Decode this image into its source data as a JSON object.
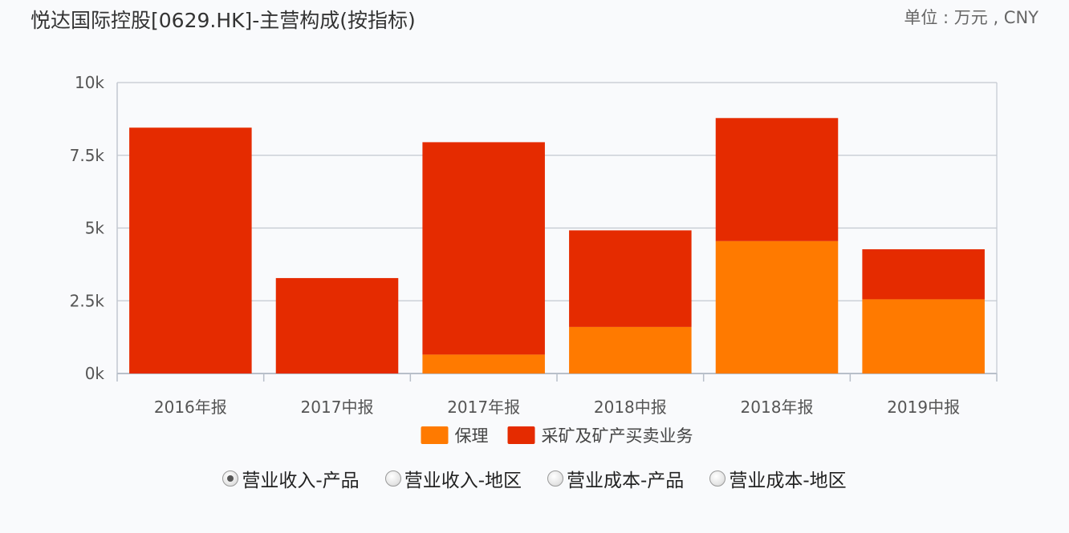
{
  "header": {
    "title": "悦达国际控股[0629.HK]-主营构成(按指标)",
    "unit": "单位 : 万元 , CNY"
  },
  "chart_data": {
    "type": "bar",
    "stacked": true,
    "categories": [
      "2016年报",
      "2017中报",
      "2017年报",
      "2018中报",
      "2018年报",
      "2019中报"
    ],
    "series": [
      {
        "name": "保理",
        "color": "#ff7a00",
        "values": [
          0,
          0,
          650,
          1600,
          4550,
          2550
        ]
      },
      {
        "name": "采矿及矿产买卖业务",
        "color": "#e52b00",
        "values": [
          8450,
          3280,
          7300,
          3320,
          4230,
          1720
        ]
      }
    ],
    "ylim": [
      0,
      10000
    ],
    "yticks": [
      0,
      2500,
      5000,
      7500,
      10000
    ],
    "ytick_labels": [
      "0k",
      "2.5k",
      "5k",
      "7.5k",
      "10k"
    ],
    "grid": true,
    "legend_position": "bottom-center",
    "xlabel": "",
    "ylabel": ""
  },
  "radio_options": [
    {
      "label": "营业收入-产品",
      "checked": true
    },
    {
      "label": "营业收入-地区",
      "checked": false
    },
    {
      "label": "营业成本-产品",
      "checked": false
    },
    {
      "label": "营业成本-地区",
      "checked": false
    }
  ]
}
